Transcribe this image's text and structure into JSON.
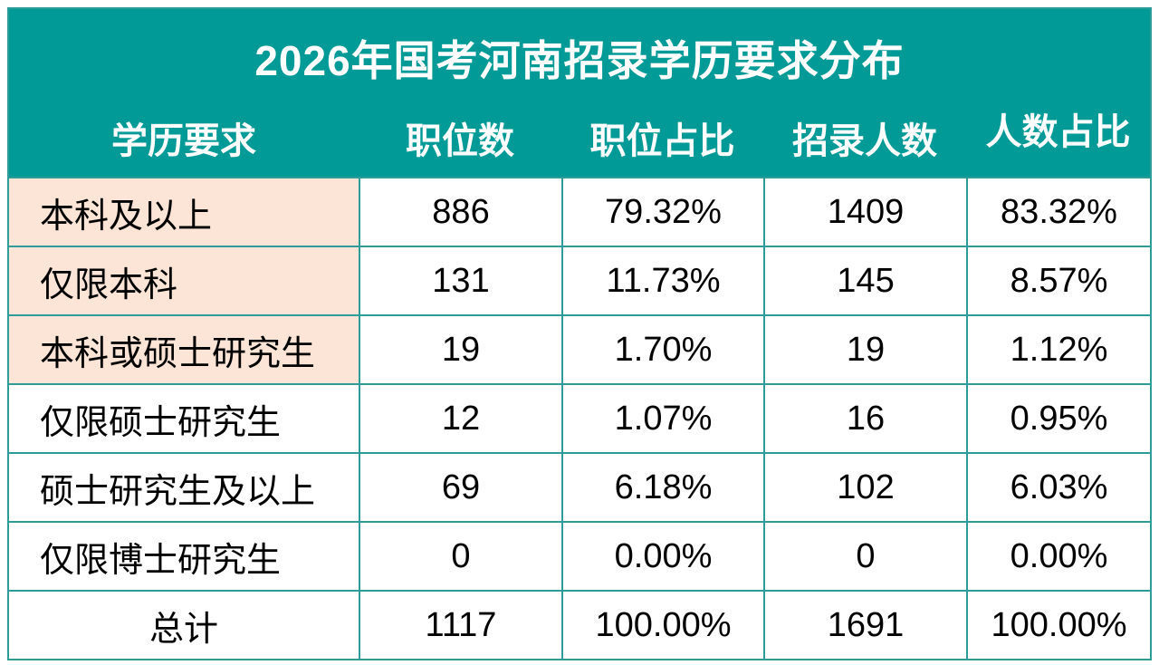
{
  "colors": {
    "accent_teal": "#019A96",
    "highlight_peach": "#FCE4D6",
    "border_teal": "#2E9D99",
    "header_text": "#FFFFFF",
    "body_text": "#000000",
    "page_bg": "#FFFFFF"
  },
  "chart_data": {
    "type": "table",
    "title": "2026年国考河南招录学历要求分布",
    "columns": [
      "学历要求",
      "职位数",
      "职位占比",
      "招录人数",
      "人数占比"
    ],
    "rows": [
      {
        "cells": [
          "本科及以上",
          "886",
          "79.32%",
          "1409",
          "83.32%"
        ],
        "label_highlight": true,
        "is_total": false
      },
      {
        "cells": [
          "仅限本科",
          "131",
          "11.73%",
          "145",
          "8.57%"
        ],
        "label_highlight": true,
        "is_total": false
      },
      {
        "cells": [
          "本科或硕士研究生",
          "19",
          "1.70%",
          "19",
          "1.12%"
        ],
        "label_highlight": true,
        "is_total": false
      },
      {
        "cells": [
          "仅限硕士研究生",
          "12",
          "1.07%",
          "16",
          "0.95%"
        ],
        "label_highlight": false,
        "is_total": false
      },
      {
        "cells": [
          "硕士研究生及以上",
          "69",
          "6.18%",
          "102",
          "6.03%"
        ],
        "label_highlight": false,
        "is_total": false
      },
      {
        "cells": [
          "仅限博士研究生",
          "0",
          "0.00%",
          "0",
          "0.00%"
        ],
        "label_highlight": false,
        "is_total": false
      },
      {
        "cells": [
          "总计",
          "1117",
          "100.00%",
          "1691",
          "100.00%"
        ],
        "label_highlight": false,
        "is_total": true
      }
    ]
  }
}
